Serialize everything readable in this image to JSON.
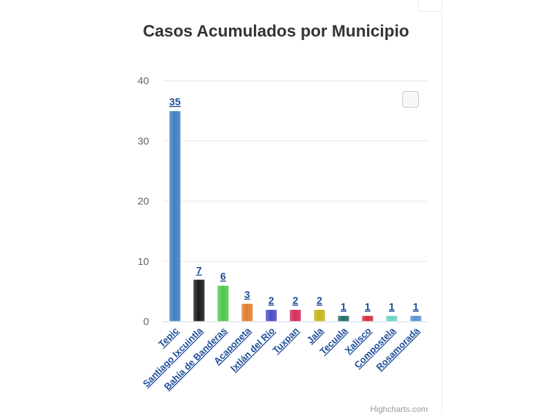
{
  "chart_data": {
    "type": "bar",
    "title": "Casos Acumulados por Municipio",
    "categories": [
      "Tepic",
      "Santiago Ixcuintla",
      "Bahía de Banderas",
      "Acaponeta",
      "Ixtlán del Río",
      "Tuxpan",
      "Jala",
      "Tecuala",
      "Xalisco",
      "Compostela",
      "Rosamorada"
    ],
    "values": [
      35,
      7,
      6,
      3,
      2,
      2,
      2,
      1,
      1,
      1,
      1
    ],
    "colors": [
      "#3f7fc2",
      "#1a1a1a",
      "#4fc64a",
      "#e07d2e",
      "#4c4cc4",
      "#d22f5c",
      "#c7b21e",
      "#1f6b66",
      "#d12d3c",
      "#6fd1c3",
      "#5b8fd1"
    ],
    "yticks": [
      "0",
      "10",
      "20",
      "30",
      "40"
    ],
    "ylim": [
      0,
      40
    ],
    "grid": true,
    "legend": "none",
    "credits": "Highcharts.com"
  }
}
